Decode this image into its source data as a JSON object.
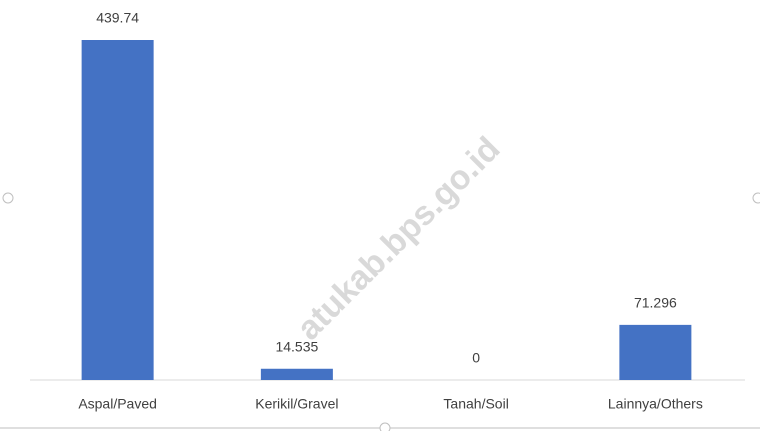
{
  "chart_data": {
    "type": "bar",
    "categories": [
      "Aspal/Paved",
      "Kerikil/Gravel",
      "Tanah/Soil",
      "Lainnya/Others"
    ],
    "values": [
      439.74,
      14.535,
      0,
      71.296
    ],
    "color": "#4472c4",
    "watermark": "atukab.bps.go.id"
  }
}
